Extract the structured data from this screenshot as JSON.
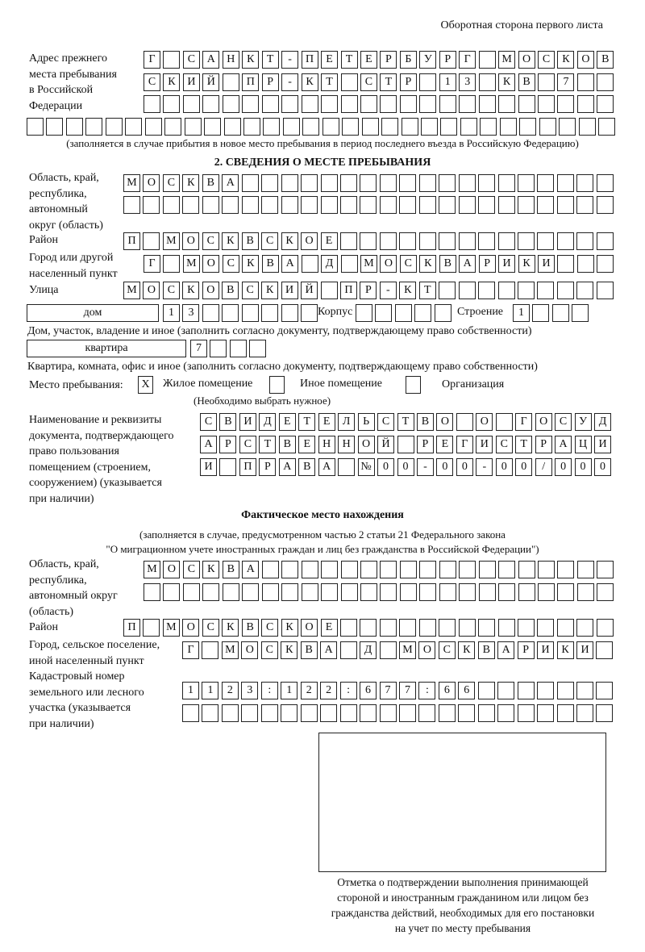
{
  "header": {
    "page_side": "Оборотная сторона первого листа"
  },
  "previous_address": {
    "label": "Адрес прежнего\nместа пребывания\nв Российской\nФедерации",
    "row1": "Г САНКТ-ПЕТЕРБУРГ МОСКОВ",
    "row2": "СКИЙ ПР-КТ СТР 13 КВ 7  ",
    "row3": "                        ",
    "row4": "                              ",
    "note": "(заполняется в случае прибытия в новое место пребывания в период последнего въезда в Российскую Федерацию)"
  },
  "section2": {
    "title": "2. СВЕДЕНИЯ О МЕСТЕ ПРЕБЫВАНИЯ",
    "region_label": "Область, край,\nреспублика,\nавтономный\nокруг (область)",
    "region_row1": "МОСКВА                   ",
    "region_row2": "                         ",
    "district_label": "Район",
    "district_row": "П МОСКВСКОЕ              ",
    "city_label": "Город или другой\nнаселенный пункт",
    "city_row": "Г МОСКВА Д МОСКВАРИКИ   ",
    "street_label": "Улица",
    "street_row": "МОСКОВСКИЙ ПР-КТ         ",
    "house_type": "дом",
    "house_row": "13      ",
    "korpus_label": "Корпус",
    "korpus_row": "     ",
    "building_label": "Строение",
    "building_row": "1   ",
    "house_note": "Дом, участок, владение и иное (заполнить согласно документу, подтверждающему право собственности)",
    "apt_type": "квартира",
    "apt_row": "7   ",
    "apt_note": "Квартира, комната, офис и иное (заполнить согласно документу, подтверждающему право собственности)",
    "stay_label": "Место пребывания:",
    "stay_options": [
      {
        "mark": "X",
        "label": "Жилое помещение"
      },
      {
        "mark": "",
        "label": "Иное помещение"
      },
      {
        "mark": "",
        "label": "Организация"
      }
    ],
    "stay_note": "(Необходимо выбрать нужное)",
    "doc_label": "Наименование и реквизиты\nдокумента, подтверждающего\nправо пользования\nпомещением (строением,\nсооружением) (указывается\nпри наличии)",
    "doc_row1": "СВИДЕТЕЛЬСТВО О ГОСУД",
    "doc_row2": "АРСТВЕННОЙ РЕГИСТРАЦИ",
    "doc_row3": "И ПРАВА №00-00-00/000"
  },
  "actual": {
    "title": "Фактическое место нахождения",
    "note1": "(заполняется в случае, предусмотренном частью 2 статьи 21 Федерального закона",
    "note2": "\"О миграционном учете иностранных граждан и лиц без гражданства в Российской Федерации\")",
    "region_label": "Область, край,\nреспублика,\nавтономный округ\n(область)",
    "region_row1": "МОСКВА                  ",
    "region_row2": "                        ",
    "district_label": "Район",
    "district_row": "П МОСКВСКОЕ              ",
    "city_label": "Город, сельское поселение,\nиной населенный пункт",
    "city_row": "Г МОСКВА Д МОСКВАРИКИ ",
    "cadastre_label": "Кадастровый номер\nземельного или лесного\nучастка (указывается\nпри наличии)",
    "cadastre_row1": "1123:122:677:66       ",
    "cadastre_row2": "                      ",
    "stamp_caption": "Отметка о подтверждении выполнения принимающей\nстороной и иностранным гражданином или лицом без\nгражданства действий, необходимых для его постановки\nна учет по месту пребывания"
  }
}
